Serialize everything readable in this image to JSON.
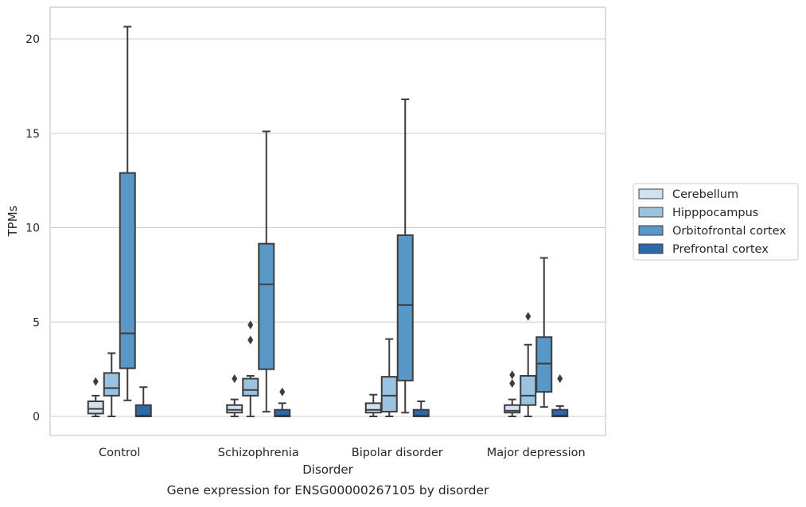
{
  "figure": {
    "caption": "Gene expression for ENSG00000267105 by disorder"
  },
  "chart_data": {
    "type": "boxplot",
    "xlabel": "Disorder",
    "ylabel": "TPMs",
    "ylim": [
      -1,
      21.7
    ],
    "yticks": [
      0,
      5,
      10,
      15,
      20
    ],
    "grid": "horizontal",
    "legend_position": "right",
    "categories": [
      "Control",
      "Schizophrenia",
      "Bipolar disorder",
      "Major depression"
    ],
    "series": [
      {
        "name": "Cerebellum",
        "color": "#d0e1f2",
        "boxes": [
          {
            "whislo": 0.0,
            "q1": 0.15,
            "med": 0.4,
            "q3": 0.8,
            "whishi": 1.1,
            "fliers": [
              1.85
            ]
          },
          {
            "whislo": 0.0,
            "q1": 0.2,
            "med": 0.35,
            "q3": 0.6,
            "whishi": 0.9,
            "fliers": [
              2.0
            ]
          },
          {
            "whislo": 0.0,
            "q1": 0.2,
            "med": 0.35,
            "q3": 0.7,
            "whishi": 1.15,
            "fliers": []
          },
          {
            "whislo": 0.0,
            "q1": 0.2,
            "med": 0.3,
            "q3": 0.6,
            "whishi": 0.9,
            "fliers": [
              1.75,
              2.2
            ]
          }
        ]
      },
      {
        "name": "Hipppocampus",
        "color": "#9ac3df",
        "boxes": [
          {
            "whislo": 0.0,
            "q1": 1.1,
            "med": 1.5,
            "q3": 2.3,
            "whishi": 3.35,
            "fliers": []
          },
          {
            "whislo": 0.0,
            "q1": 1.1,
            "med": 1.4,
            "q3": 2.0,
            "whishi": 2.15,
            "fliers": [
              4.05,
              4.85
            ]
          },
          {
            "whislo": 0.0,
            "q1": 0.25,
            "med": 1.1,
            "q3": 2.1,
            "whishi": 4.1,
            "fliers": []
          },
          {
            "whislo": 0.0,
            "q1": 0.6,
            "med": 1.1,
            "q3": 2.15,
            "whishi": 3.8,
            "fliers": [
              5.3
            ]
          }
        ]
      },
      {
        "name": "Orbitofrontal cortex",
        "color": "#5898c9",
        "boxes": [
          {
            "whislo": 0.85,
            "q1": 2.55,
            "med": 4.4,
            "q3": 12.9,
            "whishi": 20.65,
            "fliers": []
          },
          {
            "whislo": 0.25,
            "q1": 2.5,
            "med": 7.0,
            "q3": 9.15,
            "whishi": 15.1,
            "fliers": []
          },
          {
            "whislo": 0.2,
            "q1": 1.9,
            "med": 5.9,
            "q3": 9.6,
            "whishi": 16.8,
            "fliers": []
          },
          {
            "whislo": 0.5,
            "q1": 1.3,
            "med": 2.8,
            "q3": 4.2,
            "whishi": 8.4,
            "fliers": []
          }
        ]
      },
      {
        "name": "Prefrontal cortex",
        "color": "#2a6aa9",
        "boxes": [
          {
            "whislo": 0.0,
            "q1": 0.0,
            "med": 0.05,
            "q3": 0.6,
            "whishi": 1.55,
            "fliers": []
          },
          {
            "whislo": 0.0,
            "q1": 0.0,
            "med": 0.05,
            "q3": 0.35,
            "whishi": 0.7,
            "fliers": [
              1.3
            ]
          },
          {
            "whislo": 0.0,
            "q1": 0.0,
            "med": 0.05,
            "q3": 0.35,
            "whishi": 0.8,
            "fliers": []
          },
          {
            "whislo": 0.0,
            "q1": 0.0,
            "med": 0.05,
            "q3": 0.35,
            "whishi": 0.55,
            "fliers": [
              2.0
            ]
          }
        ]
      }
    ]
  },
  "colors": {
    "grid": "#cccccc",
    "spine": "#cccccc",
    "line": "#3d3d3d",
    "text": "#262626"
  }
}
